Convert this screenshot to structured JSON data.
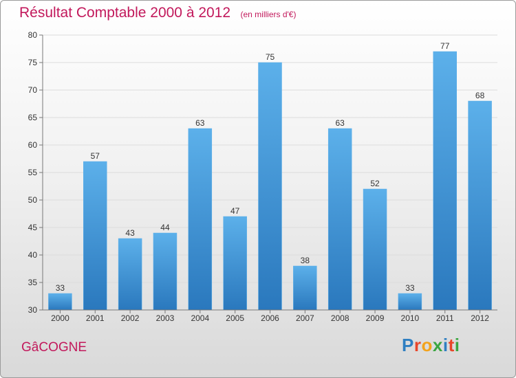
{
  "chart_data": {
    "type": "bar",
    "title": "Résultat Comptable 2000 à 2012",
    "unit_label": "(en milliers d'€)",
    "categories": [
      "2000",
      "2001",
      "2002",
      "2003",
      "2004",
      "2005",
      "2006",
      "2007",
      "2008",
      "2009",
      "2010",
      "2011",
      "2012"
    ],
    "values": [
      33,
      57,
      43,
      44,
      63,
      47,
      75,
      38,
      63,
      52,
      33,
      77,
      68
    ],
    "ylim": [
      30,
      80
    ],
    "yticks": [
      30,
      35,
      40,
      45,
      50,
      55,
      60,
      65,
      70,
      75,
      80
    ],
    "grid": true,
    "xlabel": "",
    "ylabel": ""
  },
  "commune": "GâCOGNE",
  "logo": {
    "text": "Proxiti",
    "colors": [
      "#2f7fc1",
      "#e8462a",
      "#f3a21b",
      "#3aa641",
      "#2f7fc1",
      "#e8462a",
      "#3aa641"
    ]
  },
  "colors": {
    "bar": "#3f95da",
    "bar_light": "#5cb0ea",
    "bar_dark": "#2a78bd",
    "title": "#c2185b",
    "grid": "#dcdcdc",
    "axis": "#777777",
    "label": "#333333"
  }
}
